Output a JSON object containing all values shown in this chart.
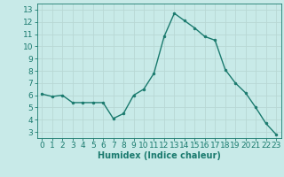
{
  "x": [
    0,
    1,
    2,
    3,
    4,
    5,
    6,
    7,
    8,
    9,
    10,
    11,
    12,
    13,
    14,
    15,
    16,
    17,
    18,
    19,
    20,
    21,
    22,
    23
  ],
  "y": [
    6.1,
    5.9,
    6.0,
    5.4,
    5.4,
    5.4,
    5.4,
    4.1,
    4.5,
    6.0,
    6.5,
    7.8,
    10.8,
    12.7,
    12.1,
    11.5,
    10.8,
    10.5,
    8.1,
    7.0,
    6.2,
    5.0,
    3.7,
    2.8
  ],
  "line_color": "#1a7a6e",
  "marker": "o",
  "marker_size": 2.0,
  "bg_color": "#c8eae8",
  "grid_color": "#b8d8d4",
  "xlabel": "Humidex (Indice chaleur)",
  "ylabel": "",
  "ylim": [
    2.5,
    13.5
  ],
  "xlim": [
    -0.5,
    23.5
  ],
  "yticks": [
    3,
    4,
    5,
    6,
    7,
    8,
    9,
    10,
    11,
    12,
    13
  ],
  "xticks": [
    0,
    1,
    2,
    3,
    4,
    5,
    6,
    7,
    8,
    9,
    10,
    11,
    12,
    13,
    14,
    15,
    16,
    17,
    18,
    19,
    20,
    21,
    22,
    23
  ],
  "xlabel_fontsize": 7,
  "tick_fontsize": 6.5,
  "axis_color": "#1a7a6e",
  "linewidth": 1.0
}
